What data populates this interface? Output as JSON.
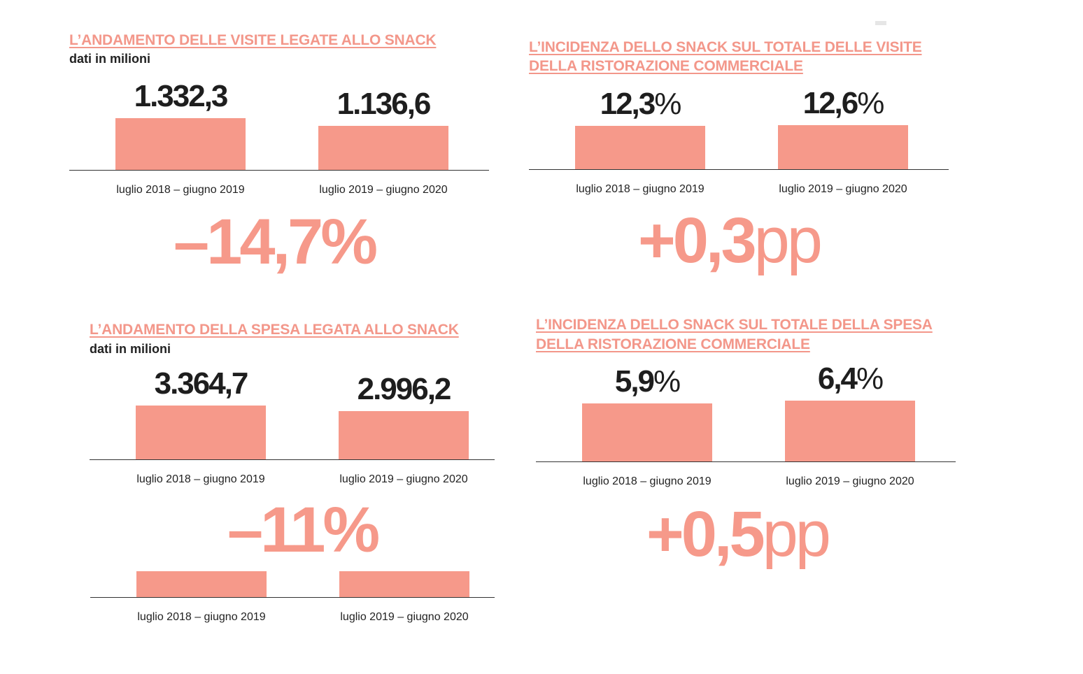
{
  "panels": {
    "visits": {
      "title": "L’ANDAMENTO DELLE VISITE LEGATE ALLO SNACK",
      "subtitle": "dati in milioni",
      "change": "–14,7%"
    },
    "visits_share": {
      "title_line1": "L’INCIDENZA DELLO SNACK SUL TOTALE DELLE VISITE",
      "title_line2": "DELLA RISTORAZIONE COMMERCIALE",
      "change_value": "+0,3",
      "change_unit": "pp"
    },
    "spend": {
      "title": "L’ANDAMENTO DELLA SPESA LEGATA ALLO SNACK",
      "subtitle": "dati in milioni",
      "change": "–11%"
    },
    "spend_share": {
      "title_line1": "L’INCIDENZA DELLO SNACK SUL TOTALE DELLA SPESA",
      "title_line2": "DELLA RISTORAZIONE COMMERCIALE",
      "change_value": "+0,5",
      "change_unit": "pp"
    }
  },
  "chart_data": [
    {
      "id": "visits",
      "type": "bar",
      "title": "L’ANDAMENTO DELLE VISITE LEGATE ALLO SNACK",
      "subtitle": "dati in milioni",
      "categories": [
        "luglio 2018 – giugno 2019",
        "luglio 2019 – giugno 2020"
      ],
      "values": [
        1332.3,
        1136.6
      ],
      "value_labels": [
        "1.332,3",
        "1.136,6"
      ]
    },
    {
      "id": "visits_share",
      "type": "bar",
      "title": "L’INCIDENZA DELLO SNACK SUL TOTALE DELLE VISITE DELLA RISTORAZIONE COMMERCIALE",
      "categories": [
        "luglio 2018 – giugno 2019",
        "luglio 2019 – giugno 2020"
      ],
      "values": [
        12.3,
        12.6
      ],
      "value_labels": [
        "12,3",
        "12,6"
      ],
      "value_suffix": "%"
    },
    {
      "id": "spend",
      "type": "bar",
      "title": "L’ANDAMENTO DELLA SPESA LEGATA ALLO SNACK",
      "subtitle": "dati in milioni",
      "categories": [
        "luglio 2018 – giugno 2019",
        "luglio 2019 – giugno 2020"
      ],
      "values": [
        3364.7,
        2996.2
      ],
      "value_labels": [
        "3.364,7",
        "2.996,2"
      ]
    },
    {
      "id": "spend_share",
      "type": "bar",
      "title": "L’INCIDENZA DELLO SNACK SUL TOTALE DELLA SPESA DELLA RISTORAZIONE COMMERCIALE",
      "categories": [
        "luglio 2018 – giugno 2019",
        "luglio 2019 – giugno 2020"
      ],
      "values": [
        5.9,
        6.4
      ],
      "value_labels": [
        "5,9",
        "6,4"
      ],
      "value_suffix": "%"
    },
    {
      "id": "spend_repeat",
      "type": "bar",
      "categories": [
        "luglio 2018 – giugno 2019",
        "luglio 2019 – giugno 2020"
      ],
      "values": [
        1,
        1
      ]
    }
  ]
}
